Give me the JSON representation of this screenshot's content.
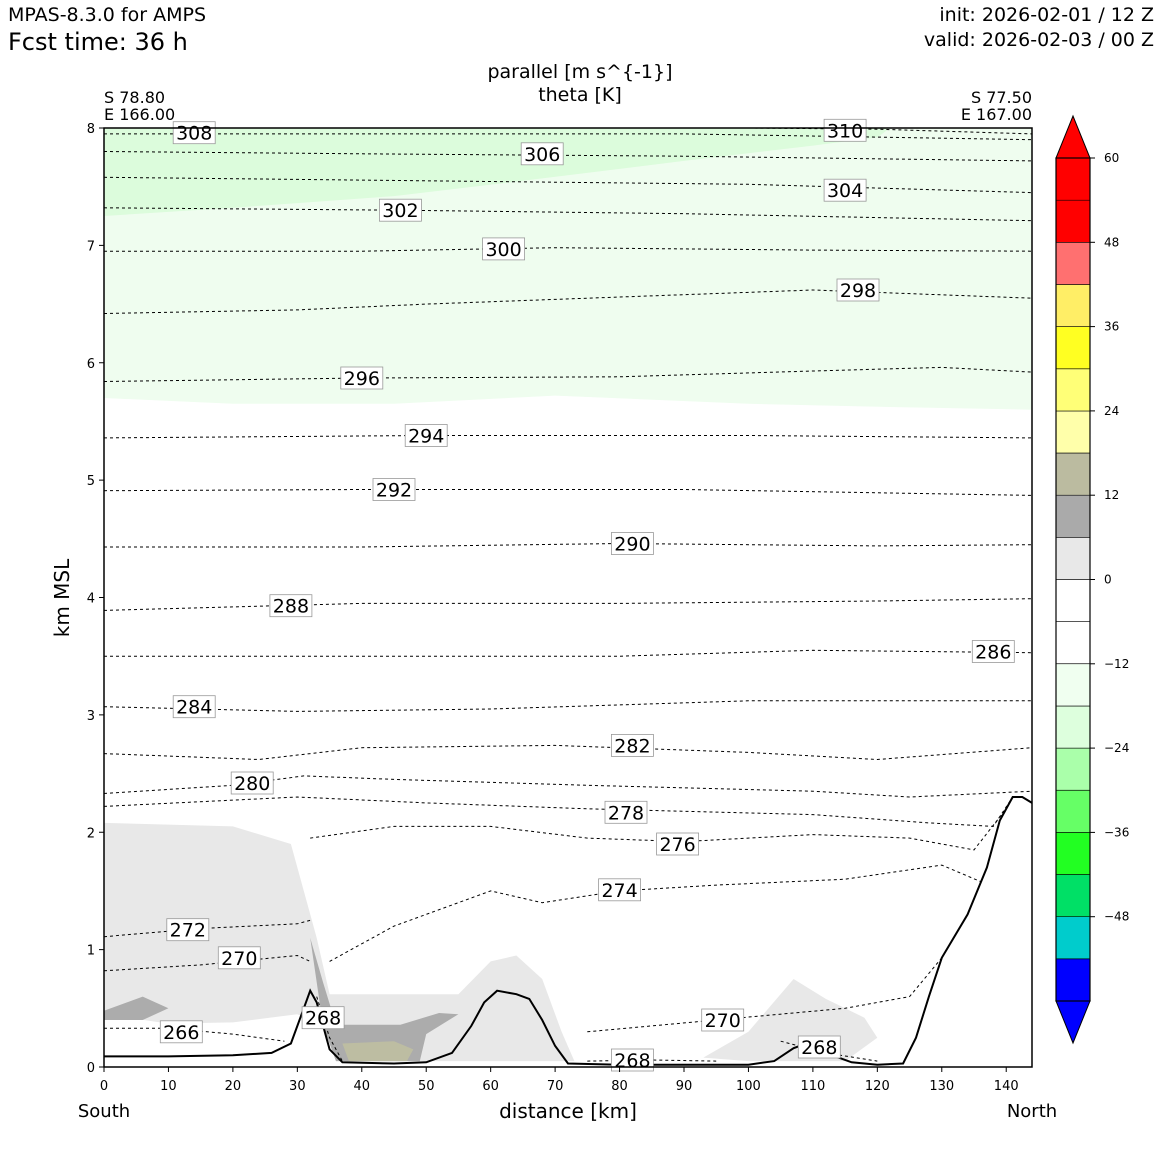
{
  "header": {
    "model": "MPAS-8.3.0 for AMPS",
    "fcst_time": "Fcst time:   36 h",
    "init": "init: 2026-02-01 / 12 Z",
    "valid": "valid: 2026-02-03 / 00 Z"
  },
  "chart_data": {
    "type": "cross-section",
    "title_line1": "parallel [m s^{-1}]",
    "title_line2": "theta [K]",
    "xlabel": "distance [km]",
    "ylabel": "km MSL",
    "xlim": [
      0,
      144
    ],
    "ylim": [
      0,
      8
    ],
    "x_ticks": [
      0,
      10,
      20,
      30,
      40,
      50,
      60,
      70,
      80,
      90,
      100,
      110,
      120,
      130,
      140
    ],
    "y_ticks": [
      0,
      1,
      2,
      3,
      4,
      5,
      6,
      7,
      8
    ],
    "left_end": {
      "lat": "S 78.80",
      "lon": "E 166.00",
      "direction": "South"
    },
    "right_end": {
      "lat": "S 77.50",
      "lon": "E 167.00",
      "direction": "North"
    },
    "colorbar": {
      "boundaries": [
        -60,
        -54,
        -48,
        -42,
        -36,
        -30,
        -24,
        -18,
        -12,
        -6,
        0,
        6,
        12,
        18,
        24,
        30,
        36,
        42,
        48,
        54,
        60
      ],
      "colors": [
        "#0000ff",
        "#00cccc",
        "#00e066",
        "#22ff22",
        "#66ff66",
        "#aaffaa",
        "#ddffdd",
        "#f0fff0",
        "#ffffff",
        "#ffffff",
        "#e8e8e8",
        "#aaaaaa",
        "#bbbba0",
        "#ffffaa",
        "#ffff77",
        "#ffff22",
        "#ffee66",
        "#ff7070",
        "#ff0000",
        "#ff0000"
      ],
      "tick_values": [
        60,
        48,
        36,
        24,
        12,
        0,
        -12,
        -24,
        -36,
        -48
      ],
      "tick_labels": [
        "60",
        "48",
        "36",
        "24",
        "12",
        "0",
        "−12",
        "−24",
        "−36",
        "−48"
      ]
    },
    "colors": {
      "light_green": "#dcfcdc",
      "pale_green": "#effdef",
      "light_gray": "#e8e8e8",
      "mid_gray": "#acacac",
      "olive": "#bdbda2",
      "terrain": "#000000"
    },
    "terrain": [
      [
        0,
        0.09
      ],
      [
        10,
        0.09
      ],
      [
        20,
        0.1
      ],
      [
        26,
        0.12
      ],
      [
        29,
        0.2
      ],
      [
        31,
        0.5
      ],
      [
        32,
        0.65
      ],
      [
        33,
        0.55
      ],
      [
        35,
        0.15
      ],
      [
        37,
        0.04
      ],
      [
        45,
        0.03
      ],
      [
        50,
        0.04
      ],
      [
        54,
        0.12
      ],
      [
        57,
        0.35
      ],
      [
        59,
        0.55
      ],
      [
        61,
        0.65
      ],
      [
        64,
        0.62
      ],
      [
        66,
        0.58
      ],
      [
        68,
        0.4
      ],
      [
        70,
        0.18
      ],
      [
        72,
        0.03
      ],
      [
        80,
        0.02
      ],
      [
        100,
        0.02
      ],
      [
        104,
        0.05
      ],
      [
        107,
        0.16
      ],
      [
        109,
        0.2
      ],
      [
        112,
        0.12
      ],
      [
        116,
        0.04
      ],
      [
        120,
        0.02
      ],
      [
        124,
        0.03
      ],
      [
        126,
        0.25
      ],
      [
        128,
        0.6
      ],
      [
        130,
        0.93
      ],
      [
        134,
        1.3
      ],
      [
        137,
        1.7
      ],
      [
        139,
        2.1
      ],
      [
        141,
        2.3
      ],
      [
        142.5,
        2.3
      ],
      [
        144,
        2.25
      ]
    ],
    "wind_shading": [
      {
        "level": "pale_green",
        "points": [
          [
            0,
            5.7
          ],
          [
            20,
            5.65
          ],
          [
            45,
            5.65
          ],
          [
            70,
            5.72
          ],
          [
            100,
            5.65
          ],
          [
            125,
            5.62
          ],
          [
            144,
            5.6
          ],
          [
            144,
            8
          ],
          [
            0,
            8
          ]
        ]
      },
      {
        "level": "light_green",
        "points": [
          [
            0,
            7.25
          ],
          [
            20,
            7.32
          ],
          [
            45,
            7.42
          ],
          [
            65,
            7.55
          ],
          [
            90,
            7.72
          ],
          [
            110,
            7.85
          ],
          [
            120,
            7.92
          ],
          [
            122,
            8
          ],
          [
            0,
            8
          ]
        ]
      },
      {
        "level": "light_gray",
        "points": [
          [
            0,
            2.08
          ],
          [
            20,
            2.05
          ],
          [
            29,
            1.9
          ],
          [
            33,
            1.1
          ],
          [
            35,
            0.62
          ],
          [
            45,
            0.62
          ],
          [
            55,
            0.62
          ],
          [
            60,
            0.9
          ],
          [
            64,
            0.95
          ],
          [
            68,
            0.75
          ],
          [
            71,
            0.3
          ],
          [
            73,
            0.05
          ],
          [
            50,
            0.05
          ],
          [
            36,
            0.05
          ],
          [
            34,
            0.35
          ],
          [
            30,
            0.45
          ],
          [
            20,
            0.38
          ],
          [
            10,
            0.37
          ],
          [
            0,
            0.45
          ]
        ]
      },
      {
        "level": "light_gray",
        "points": [
          [
            93,
            0.08
          ],
          [
            100,
            0.3
          ],
          [
            107,
            0.75
          ],
          [
            112,
            0.58
          ],
          [
            118,
            0.42
          ],
          [
            120,
            0.25
          ],
          [
            115,
            0.05
          ],
          [
            100,
            0.05
          ]
        ]
      },
      {
        "level": "mid_gray",
        "points": [
          [
            0,
            0.48
          ],
          [
            6,
            0.6
          ],
          [
            10,
            0.5
          ],
          [
            6,
            0.4
          ],
          [
            0,
            0.4
          ]
        ]
      },
      {
        "level": "mid_gray",
        "points": [
          [
            32,
            1.1
          ],
          [
            34,
            0.72
          ],
          [
            36,
            0.36
          ],
          [
            46,
            0.36
          ],
          [
            52,
            0.46
          ],
          [
            55,
            0.45
          ],
          [
            50,
            0.28
          ],
          [
            49,
            0.05
          ],
          [
            36,
            0.05
          ],
          [
            34,
            0.35
          ]
        ]
      },
      {
        "level": "olive",
        "points": [
          [
            37,
            0.2
          ],
          [
            45,
            0.22
          ],
          [
            48,
            0.15
          ],
          [
            47,
            0.05
          ],
          [
            38,
            0.05
          ]
        ]
      }
    ],
    "theta_contours": [
      {
        "level": 266,
        "label": "266",
        "label_at": [
          12,
          0.3
        ],
        "points": [
          [
            0,
            0.33
          ],
          [
            10,
            0.33
          ],
          [
            20,
            0.28
          ],
          [
            28,
            0.22
          ]
        ]
      },
      {
        "level": 268,
        "label": "268",
        "label_at": [
          34,
          0.42
        ],
        "points": [
          [
            33,
            0.6
          ],
          [
            35,
            0.25
          ],
          [
            37,
            0.05
          ]
        ]
      },
      {
        "level": 268,
        "label": "268",
        "label_at": [
          82,
          0.06
        ],
        "points": [
          [
            75,
            0.05
          ],
          [
            85,
            0.06
          ],
          [
            95,
            0.05
          ]
        ]
      },
      {
        "level": 268,
        "label": "268",
        "label_at": [
          111,
          0.17
        ],
        "points": [
          [
            105,
            0.22
          ],
          [
            112,
            0.12
          ],
          [
            120,
            0.05
          ]
        ]
      },
      {
        "level": 270,
        "label": "270",
        "label_at": [
          21,
          0.93
        ],
        "points": [
          [
            0,
            0.82
          ],
          [
            15,
            0.87
          ],
          [
            30,
            0.95
          ],
          [
            32,
            0.9
          ]
        ]
      },
      {
        "level": 270,
        "label": "270",
        "label_at": [
          96,
          0.4
        ],
        "points": [
          [
            75,
            0.3
          ],
          [
            95,
            0.4
          ],
          [
            115,
            0.5
          ],
          [
            125,
            0.6
          ],
          [
            130,
            0.93
          ]
        ]
      },
      {
        "level": 272,
        "label": "272",
        "label_at": [
          13,
          1.17
        ],
        "points": [
          [
            0,
            1.11
          ],
          [
            15,
            1.18
          ],
          [
            30,
            1.22
          ],
          [
            32,
            1.25
          ]
        ]
      },
      {
        "level": 274,
        "label": "274",
        "label_at": [
          80,
          1.51
        ],
        "points": [
          [
            35,
            0.9
          ],
          [
            45,
            1.2
          ],
          [
            60,
            1.5
          ],
          [
            68,
            1.4
          ],
          [
            80,
            1.5
          ],
          [
            95,
            1.55
          ],
          [
            115,
            1.6
          ],
          [
            130,
            1.72
          ],
          [
            136,
            1.58
          ]
        ]
      },
      {
        "level": 276,
        "label": "276",
        "label_at": [
          89,
          1.9
        ],
        "points": [
          [
            32,
            1.95
          ],
          [
            45,
            2.05
          ],
          [
            60,
            2.05
          ],
          [
            75,
            1.95
          ],
          [
            90,
            1.92
          ],
          [
            110,
            1.98
          ],
          [
            125,
            1.95
          ],
          [
            135,
            1.85
          ],
          [
            140,
            2.2
          ]
        ]
      },
      {
        "level": 278,
        "label": "278",
        "label_at": [
          81,
          2.17
        ],
        "points": [
          [
            0,
            2.22
          ],
          [
            30,
            2.3
          ],
          [
            50,
            2.25
          ],
          [
            75,
            2.2
          ],
          [
            110,
            2.15
          ],
          [
            128,
            2.08
          ],
          [
            138,
            2.05
          ],
          [
            141,
            2.3
          ]
        ]
      },
      {
        "level": 280,
        "label": "280",
        "label_at": [
          23,
          2.42
        ],
        "points": [
          [
            0,
            2.33
          ],
          [
            20,
            2.4
          ],
          [
            31,
            2.48
          ],
          [
            45,
            2.45
          ],
          [
            75,
            2.4
          ],
          [
            110,
            2.35
          ],
          [
            125,
            2.3
          ],
          [
            144,
            2.35
          ]
        ]
      },
      {
        "level": 282,
        "label": "282",
        "label_at": [
          82,
          2.74
        ],
        "points": [
          [
            0,
            2.67
          ],
          [
            24,
            2.62
          ],
          [
            40,
            2.72
          ],
          [
            70,
            2.74
          ],
          [
            100,
            2.68
          ],
          [
            120,
            2.62
          ],
          [
            144,
            2.72
          ]
        ]
      },
      {
        "level": 284,
        "label": "284",
        "label_at": [
          14,
          3.07
        ],
        "points": [
          [
            0,
            3.07
          ],
          [
            30,
            3.03
          ],
          [
            60,
            3.05
          ],
          [
            100,
            3.12
          ],
          [
            144,
            3.12
          ]
        ]
      },
      {
        "level": 286,
        "label": "286",
        "label_at": [
          138,
          3.54
        ],
        "points": [
          [
            0,
            3.5
          ],
          [
            40,
            3.5
          ],
          [
            80,
            3.5
          ],
          [
            110,
            3.55
          ],
          [
            144,
            3.53
          ]
        ]
      },
      {
        "level": 288,
        "label": "288",
        "label_at": [
          29,
          3.93
        ],
        "points": [
          [
            0,
            3.89
          ],
          [
            40,
            3.95
          ],
          [
            80,
            3.95
          ],
          [
            120,
            3.97
          ],
          [
            144,
            3.99
          ]
        ]
      },
      {
        "level": 290,
        "label": "290",
        "label_at": [
          82,
          4.46
        ],
        "points": [
          [
            0,
            4.43
          ],
          [
            40,
            4.43
          ],
          [
            80,
            4.46
          ],
          [
            120,
            4.44
          ],
          [
            144,
            4.45
          ]
        ]
      },
      {
        "level": 292,
        "label": "292",
        "label_at": [
          45,
          4.92
        ],
        "points": [
          [
            0,
            4.91
          ],
          [
            40,
            4.92
          ],
          [
            90,
            4.92
          ],
          [
            144,
            4.87
          ]
        ]
      },
      {
        "level": 294,
        "label": "294",
        "label_at": [
          50,
          5.38
        ],
        "points": [
          [
            0,
            5.36
          ],
          [
            50,
            5.38
          ],
          [
            100,
            5.38
          ],
          [
            144,
            5.36
          ]
        ]
      },
      {
        "level": 296,
        "label": "296",
        "label_at": [
          40,
          5.87
        ],
        "points": [
          [
            0,
            5.84
          ],
          [
            40,
            5.87
          ],
          [
            80,
            5.88
          ],
          [
            110,
            5.93
          ],
          [
            130,
            5.96
          ],
          [
            144,
            5.92
          ]
        ]
      },
      {
        "level": 298,
        "label": "298",
        "label_at": [
          117,
          6.62
        ],
        "points": [
          [
            0,
            6.42
          ],
          [
            30,
            6.45
          ],
          [
            50,
            6.5
          ],
          [
            75,
            6.55
          ],
          [
            110,
            6.62
          ],
          [
            144,
            6.55
          ]
        ]
      },
      {
        "level": 300,
        "label": "300",
        "label_at": [
          62,
          6.97
        ],
        "points": [
          [
            0,
            6.95
          ],
          [
            40,
            6.95
          ],
          [
            70,
            6.98
          ],
          [
            110,
            6.96
          ],
          [
            144,
            6.95
          ]
        ]
      },
      {
        "level": 302,
        "label": "302",
        "label_at": [
          46,
          7.3
        ],
        "points": [
          [
            0,
            7.32
          ],
          [
            46,
            7.3
          ],
          [
            90,
            7.27
          ],
          [
            144,
            7.21
          ]
        ]
      },
      {
        "level": 304,
        "label": "304",
        "label_at": [
          115,
          7.47
        ],
        "points": [
          [
            0,
            7.58
          ],
          [
            50,
            7.55
          ],
          [
            100,
            7.52
          ],
          [
            144,
            7.45
          ]
        ]
      },
      {
        "level": 306,
        "label": "306",
        "label_at": [
          68,
          7.78
        ],
        "points": [
          [
            0,
            7.8
          ],
          [
            40,
            7.78
          ],
          [
            90,
            7.76
          ],
          [
            144,
            7.72
          ]
        ]
      },
      {
        "level": 308,
        "label": "308",
        "label_at": [
          14,
          7.96
        ],
        "points": [
          [
            0,
            7.95
          ],
          [
            40,
            7.95
          ],
          [
            90,
            7.95
          ],
          [
            144,
            7.9
          ]
        ]
      },
      {
        "level": 310,
        "label": "310",
        "label_at": [
          115,
          7.98
        ],
        "points": [
          [
            100,
            8
          ],
          [
            120,
            7.99
          ],
          [
            144,
            7.95
          ]
        ]
      }
    ]
  }
}
